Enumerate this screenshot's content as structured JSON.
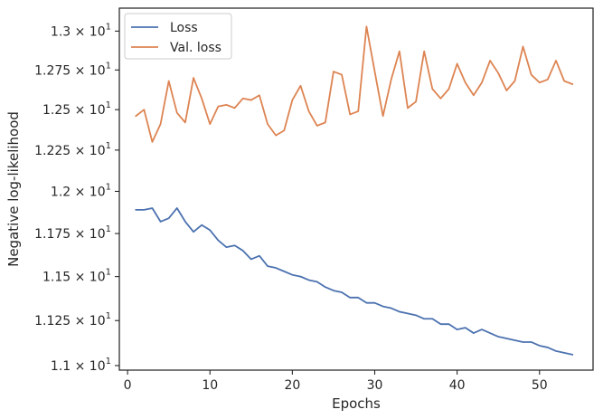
{
  "chart_data": {
    "type": "line",
    "xlabel": "Epochs",
    "ylabel": "Negative log-likelihood",
    "xlim": [
      -1,
      56.5
    ],
    "ylim": [
      10.975,
      13.15
    ],
    "yscale": "log",
    "x_ticks": [
      0,
      10,
      20,
      30,
      40,
      50
    ],
    "y_ticks": [
      {
        "value": 11.0,
        "mantissa": "1.1",
        "base": "10",
        "exp": "1"
      },
      {
        "value": 11.25,
        "mantissa": "1.125",
        "base": "10",
        "exp": "1"
      },
      {
        "value": 11.5,
        "mantissa": "1.15",
        "base": "10",
        "exp": "1"
      },
      {
        "value": 11.75,
        "mantissa": "1.175",
        "base": "10",
        "exp": "1"
      },
      {
        "value": 12.0,
        "mantissa": "1.2",
        "base": "10",
        "exp": "1"
      },
      {
        "value": 12.25,
        "mantissa": "1.225",
        "base": "10",
        "exp": "1"
      },
      {
        "value": 12.5,
        "mantissa": "1.25",
        "base": "10",
        "exp": "1"
      },
      {
        "value": 12.75,
        "mantissa": "1.275",
        "base": "10",
        "exp": "1"
      },
      {
        "value": 13.0,
        "mantissa": "1.3",
        "base": "10",
        "exp": "1"
      }
    ],
    "grid": false,
    "legend_position": "top-left",
    "x": [
      1,
      2,
      3,
      4,
      5,
      6,
      7,
      8,
      9,
      10,
      11,
      12,
      13,
      14,
      15,
      16,
      17,
      18,
      19,
      20,
      21,
      22,
      23,
      24,
      25,
      26,
      27,
      28,
      29,
      30,
      31,
      32,
      33,
      34,
      35,
      36,
      37,
      38,
      39,
      40,
      41,
      42,
      43,
      44,
      45,
      46,
      47,
      48,
      49,
      50,
      51,
      52,
      53,
      54
    ],
    "series": [
      {
        "name": "Loss",
        "color": "#4c72b0",
        "values": [
          11.89,
          11.89,
          11.9,
          11.82,
          11.84,
          11.9,
          11.82,
          11.76,
          11.8,
          11.77,
          11.71,
          11.67,
          11.68,
          11.65,
          11.6,
          11.62,
          11.56,
          11.55,
          11.53,
          11.51,
          11.5,
          11.48,
          11.47,
          11.44,
          11.42,
          11.41,
          11.38,
          11.38,
          11.35,
          11.35,
          11.33,
          11.32,
          11.3,
          11.29,
          11.28,
          11.26,
          11.26,
          11.23,
          11.23,
          11.2,
          11.21,
          11.18,
          11.2,
          11.18,
          11.16,
          11.15,
          11.14,
          11.13,
          11.13,
          11.11,
          11.1,
          11.08,
          11.07,
          11.06
        ]
      },
      {
        "name": "Val. loss",
        "color": "#dd8452",
        "values": [
          12.46,
          12.5,
          12.3,
          12.41,
          12.68,
          12.48,
          12.42,
          12.7,
          12.57,
          12.41,
          12.52,
          12.53,
          12.51,
          12.57,
          12.56,
          12.59,
          12.41,
          12.34,
          12.37,
          12.56,
          12.65,
          12.49,
          12.4,
          12.42,
          12.74,
          12.72,
          12.47,
          12.49,
          13.03,
          12.74,
          12.46,
          12.69,
          12.87,
          12.51,
          12.55,
          12.87,
          12.63,
          12.57,
          12.63,
          12.79,
          12.67,
          12.59,
          12.67,
          12.81,
          12.73,
          12.62,
          12.68,
          12.9,
          12.72,
          12.67,
          12.69,
          12.81,
          12.68,
          12.66
        ]
      }
    ]
  }
}
